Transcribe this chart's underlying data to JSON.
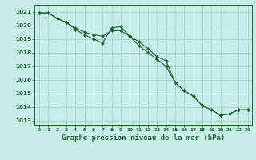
{
  "title": "Graphe pression niveau de la mer (hPa)",
  "background_color": "#c8ece9",
  "grid_color": "#a8d4d0",
  "line_color": "#1a6b2a",
  "marker_color": "#1a6b2a",
  "xlim": [
    -0.5,
    23.5
  ],
  "ylim": [
    1012.7,
    1021.5
  ],
  "yticks": [
    1013,
    1014,
    1015,
    1016,
    1017,
    1018,
    1019,
    1020,
    1021
  ],
  "xticks": [
    0,
    1,
    2,
    3,
    4,
    5,
    6,
    7,
    8,
    9,
    10,
    11,
    12,
    13,
    14,
    15,
    16,
    17,
    18,
    19,
    20,
    21,
    22,
    23
  ],
  "series1_x": [
    0,
    1,
    2,
    3,
    4,
    5,
    6,
    7,
    8,
    9,
    10,
    11,
    12,
    13,
    14,
    15,
    16,
    17,
    18,
    19,
    20,
    21,
    22,
    23
  ],
  "series1_y": [
    1020.9,
    1020.9,
    1020.5,
    1020.2,
    1019.8,
    1019.5,
    1019.3,
    1019.2,
    1019.6,
    1019.6,
    1019.2,
    1018.8,
    1018.3,
    1017.7,
    1017.4,
    1015.8,
    1015.2,
    1014.8,
    1014.1,
    1013.8,
    1013.4,
    1013.5,
    1013.8,
    1013.8
  ],
  "series2_x": [
    0,
    1,
    2,
    3,
    4,
    5,
    6,
    7,
    8,
    9,
    10,
    11,
    12,
    13,
    14,
    15,
    16,
    17,
    18,
    19,
    20,
    21,
    22,
    23
  ],
  "series2_y": [
    1020.9,
    1020.9,
    1020.5,
    1020.2,
    1019.7,
    1019.3,
    1019.0,
    1018.7,
    1019.8,
    1019.9,
    1019.2,
    1018.5,
    1018.0,
    1017.5,
    1017.0,
    1015.8,
    1015.2,
    1014.8,
    1014.1,
    1013.8,
    1013.4,
    1013.5,
    1013.8,
    1013.8
  ],
  "ylabel_fontsize": 5.5,
  "xlabel_fontsize": 4.5,
  "title_fontsize": 6.5
}
